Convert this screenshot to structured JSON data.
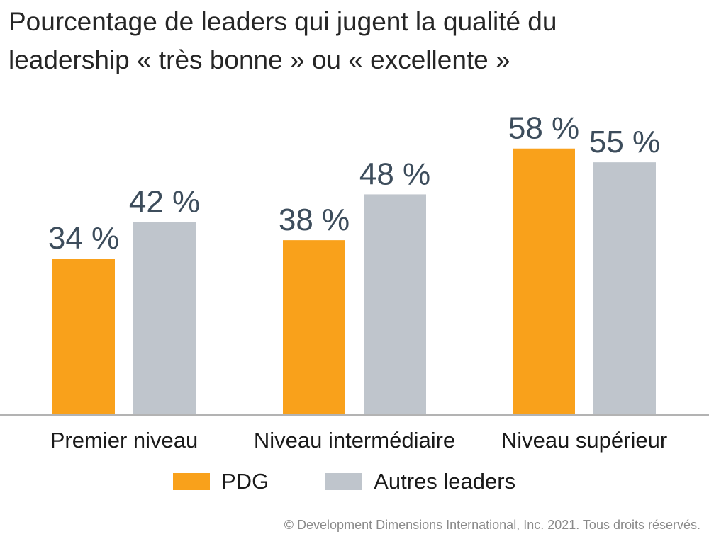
{
  "chart_data": {
    "type": "bar",
    "title": [
      "Pourcentage de leaders qui jugent la qualité du",
      "leadership « très bonne » ou « excellente »"
    ],
    "categories": [
      "Premier niveau",
      "Niveau intermédiaire",
      "Niveau supérieur"
    ],
    "series": [
      {
        "name": "PDG",
        "values": [
          34,
          38,
          58
        ],
        "labels": [
          "34 %",
          "38 %",
          "58 %"
        ],
        "color": "#f9a11b"
      },
      {
        "name": "Autres leaders",
        "values": [
          42,
          48,
          55
        ],
        "labels": [
          "42 %",
          "48 %",
          "55 %"
        ],
        "color": "#bfc5cc"
      }
    ],
    "ylim": [
      0,
      100
    ],
    "grid": false,
    "legend": "bottom",
    "baseline_color": "#b3b3b3"
  },
  "footer": {
    "credit": "© Development Dimensions International, Inc. 2021. Tous droits réservés."
  }
}
